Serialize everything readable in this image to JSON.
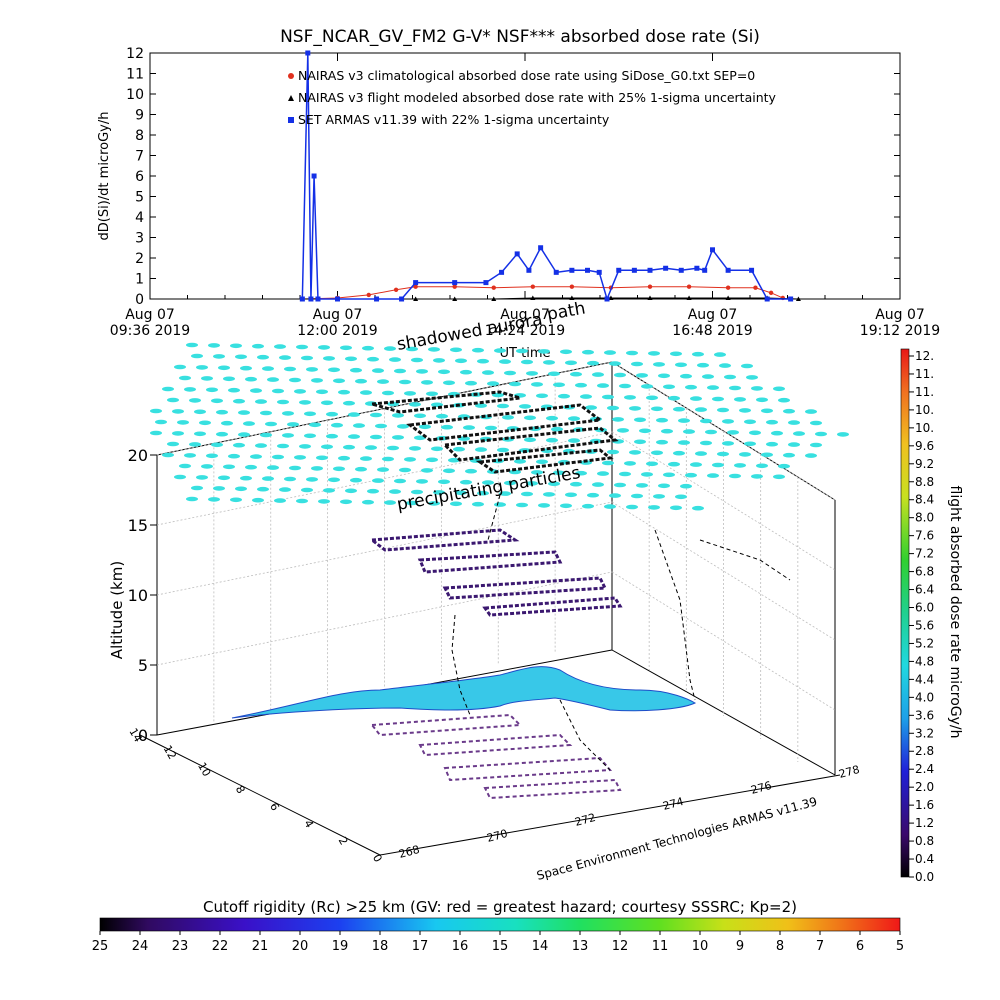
{
  "chart_data": [
    {
      "type": "line",
      "title": "NSF_NCAR_GV_FM2 G-V* NSF*** absorbed dose rate (Si)",
      "ylabel": "dD(Si)/dt microGy/h",
      "xlabel": "UT time",
      "ylim": [
        0,
        12
      ],
      "yticks": [
        "0",
        "1",
        "2",
        "3",
        "4",
        "5",
        "6",
        "7",
        "8",
        "9",
        "10",
        "11",
        "12"
      ],
      "xticks": [
        {
          "top": "Aug 07",
          "bottom": "09:36 2019"
        },
        {
          "top": "Aug 07",
          "bottom": "12:00 2019"
        },
        {
          "top": "Aug 07",
          "bottom": "14:24 2019"
        },
        {
          "top": "Aug 07",
          "bottom": "16:48 2019"
        },
        {
          "top": "Aug 07",
          "bottom": "19:12 2019"
        }
      ],
      "legend": [
        {
          "text": "NAIRAS v3 climatological absorbed dose rate using SiDose_G0.txt SEP=0",
          "marker": "circle",
          "color": "#e0301e"
        },
        {
          "text": "NAIRAS v3 flight modeled absorbed dose rate with 25% 1-sigma uncertainty",
          "marker": "triangle",
          "color": "#000000"
        },
        {
          "text": "SET ARMAS v11.39 with 22% 1-sigma uncertainty",
          "marker": "square",
          "color": "#1430e6"
        }
      ],
      "legend_position": "top-center",
      "series": [
        {
          "name": "NAIRAS v3 climatological absorbed dose rate using SiDose_G0.txt SEP=0",
          "color": "#e0301e",
          "x_hours": [
            11.55,
            12.0,
            12.4,
            12.75,
            13.0,
            13.5,
            14.0,
            14.5,
            15.0,
            15.5,
            16.0,
            16.5,
            17.0,
            17.35,
            17.55,
            17.7
          ],
          "y": [
            0.0,
            0.05,
            0.2,
            0.45,
            0.6,
            0.6,
            0.55,
            0.6,
            0.6,
            0.55,
            0.6,
            0.6,
            0.55,
            0.55,
            0.3,
            0.05
          ]
        },
        {
          "name": "NAIRAS v3 flight modeled absorbed dose rate with 25% 1-sigma uncertainty",
          "color": "#000000",
          "x_hours": [
            11.55,
            12.0,
            12.5,
            13.0,
            13.5,
            14.0,
            14.5,
            15.0,
            15.5,
            16.0,
            16.5,
            17.0,
            17.5,
            17.9
          ],
          "y": [
            0.0,
            0.0,
            0.0,
            0.0,
            0.0,
            0.0,
            0.05,
            0.05,
            0.05,
            0.05,
            0.05,
            0.05,
            0.05,
            0.0
          ]
        },
        {
          "name": "SET ARMAS v11.39 with 22% 1-sigma uncertainty",
          "color": "#1430e6",
          "x_hours": [
            11.55,
            11.62,
            11.66,
            11.7,
            11.75,
            12.0,
            12.5,
            12.82,
            13.0,
            13.5,
            13.9,
            14.1,
            14.3,
            14.45,
            14.6,
            14.8,
            15.0,
            15.2,
            15.35,
            15.45,
            15.6,
            15.8,
            16.0,
            16.2,
            16.4,
            16.6,
            16.7,
            16.8,
            17.0,
            17.3,
            17.5,
            17.8
          ],
          "y": [
            0.0,
            12.0,
            0.0,
            6.0,
            0.0,
            0.0,
            0.0,
            0.0,
            0.8,
            0.8,
            0.8,
            1.3,
            2.2,
            1.4,
            2.5,
            1.3,
            1.4,
            1.4,
            1.3,
            0.0,
            1.4,
            1.4,
            1.4,
            1.5,
            1.4,
            1.5,
            1.4,
            2.4,
            1.4,
            1.4,
            0.0,
            0.0
          ]
        }
      ]
    },
    {
      "type": "scatter",
      "ylabel": "Altitude (km)",
      "zlim": [
        0,
        20
      ],
      "zticks": [
        "0",
        "5",
        "10",
        "15",
        "20"
      ],
      "latitude_ticks": [
        "14",
        "12",
        "10",
        "8",
        "6",
        "4",
        "2",
        "0"
      ],
      "longitude_ticks": [
        "268",
        "270",
        "272",
        "274",
        "276",
        "278"
      ],
      "annotations": [
        "shadowed aurora",
        "path",
        "precipitating particles"
      ],
      "credit": "Space Environment Technologies ARMAS v11.39",
      "colorbar": {
        "label": "flight absorbed dose rate microGy/h",
        "range": [
          0.0,
          12.0
        ],
        "ticks": [
          "12.",
          "11.",
          "11.",
          "10.",
          "10.",
          "9.6",
          "9.2",
          "8.8",
          "8.4",
          "8.0",
          "7.6",
          "7.2",
          "6.8",
          "6.4",
          "6.0",
          "5.6",
          "5.2",
          "4.8",
          "4.4",
          "4.0",
          "3.6",
          "3.2",
          "2.8",
          "2.4",
          "2.0",
          "1.6",
          "1.2",
          "0.8",
          "0.4",
          "0.0"
        ]
      },
      "rigidity_bar": {
        "label": "Cutoff rigidity (Rc) >25 km (GV: red = greatest hazard; courtesy SSSRC; Kp=2)",
        "ticks": [
          "25",
          "24",
          "23",
          "22",
          "21",
          "20",
          "19",
          "18",
          "17",
          "16",
          "15",
          "14",
          "13",
          "12",
          "11",
          "10",
          "9",
          "8",
          "7",
          "6",
          "5"
        ]
      }
    }
  ]
}
